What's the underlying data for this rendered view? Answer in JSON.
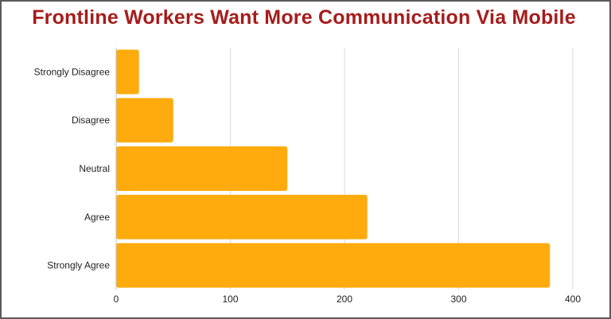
{
  "chart_data": {
    "type": "bar",
    "orientation": "horizontal",
    "title": "Frontline Workers Want More Communication Via Mobile",
    "categories": [
      "Strongly Disagree",
      "Disagree",
      "Neutral",
      "Agree",
      "Strongly Agree"
    ],
    "values": [
      20,
      50,
      150,
      220,
      380
    ],
    "xlim": [
      0,
      400
    ],
    "xticks": [
      "0",
      "100",
      "200",
      "300",
      "400"
    ],
    "xlabel": "",
    "ylabel": "",
    "grid": true,
    "legend": "none",
    "colors": {
      "bar": "#ffab0d",
      "title": "#a61c1c",
      "grid": "#d9d9d9",
      "frame": "#5a5a5a"
    }
  }
}
